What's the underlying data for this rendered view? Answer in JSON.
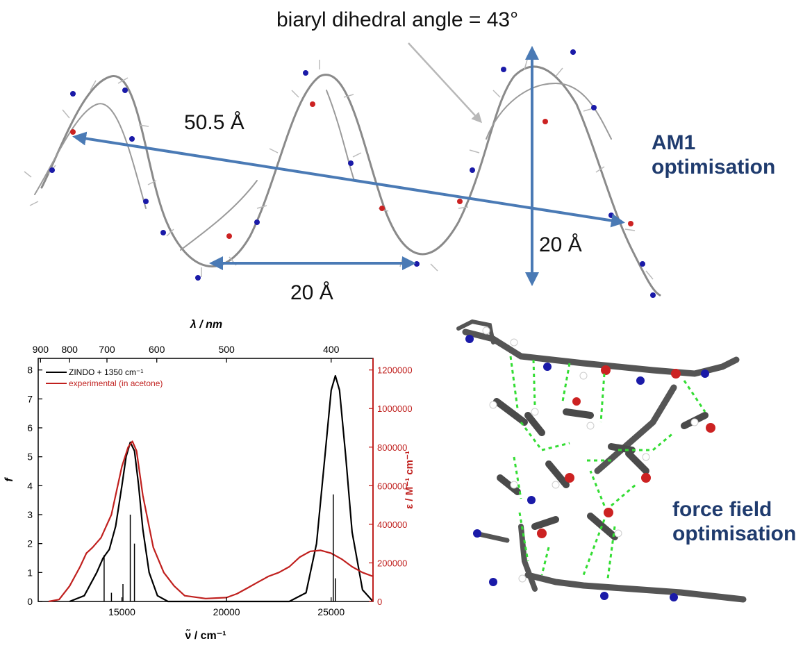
{
  "figure": {
    "top_panel": {
      "dihedral_label": "biaryl dihedral angle = 43°",
      "length_label": "50.5 Å",
      "pitch_label": "20 Å",
      "height_label": "20 Å",
      "method_label_line1": "AM1",
      "method_label_line2": "optimisation"
    },
    "bottom_right_panel": {
      "method_label_line1": "force field",
      "method_label_line2": "optimisation"
    }
  },
  "colors": {
    "arrow_blue": "#4a7ab5",
    "label_blue": "#1f3b6e",
    "experimental_red": "#c0201e",
    "hbond_green": "#33dd33",
    "nitrogen_blue": "#1a1aa8",
    "oxygen_red": "#cc2222",
    "carbon_grey": "#777777"
  },
  "chart_data": {
    "type": "line",
    "top_axis": {
      "label": "λ / nm",
      "ticks": [
        "900",
        "800",
        "700",
        "600",
        "500",
        "400"
      ]
    },
    "xlabel": "ν̃ / cm⁻¹",
    "xlim": [
      11000,
      27000
    ],
    "xticks": [
      "15000",
      "20000",
      "25000"
    ],
    "ylabel_left": "f",
    "ylim_left": [
      0,
      8.4
    ],
    "yticks_left": [
      "0",
      "1",
      "2",
      "3",
      "4",
      "5",
      "6",
      "7",
      "8"
    ],
    "ylabel_right": "ε / M⁻¹ cm⁻¹",
    "ylim_right": [
      0,
      1260000
    ],
    "yticks_right": [
      "0",
      "200000",
      "400000",
      "600000",
      "800000",
      "1000000",
      "1200000"
    ],
    "legend": [
      "ZINDO + 1350 cm⁻¹",
      "experimental (in acetone)"
    ],
    "legend_position": "top-left",
    "series": [
      {
        "name": "ZINDO + 1350 cm⁻¹",
        "color": "#000000",
        "axis": "left",
        "x": [
          12500,
          13200,
          13800,
          14100,
          14400,
          14700,
          15000,
          15200,
          15400,
          15600,
          15800,
          16000,
          16300,
          16700,
          17200,
          20000,
          23000,
          23800,
          24300,
          24700,
          25000,
          25200,
          25400,
          25700,
          26000,
          26500,
          27000
        ],
        "y": [
          0,
          0.2,
          1.0,
          1.5,
          1.8,
          2.6,
          4.0,
          5.0,
          5.5,
          5.2,
          4.0,
          2.5,
          1.0,
          0.2,
          0,
          0,
          0,
          0.3,
          2.0,
          5.0,
          7.3,
          7.8,
          7.3,
          5.0,
          2.4,
          0.4,
          0
        ]
      },
      {
        "name": "experimental (in acetone)",
        "color": "#c0201e",
        "axis": "right",
        "x": [
          11500,
          12000,
          12500,
          13000,
          13300,
          13600,
          14000,
          14500,
          15000,
          15300,
          15500,
          15700,
          16000,
          16500,
          17000,
          17500,
          18000,
          19000,
          20000,
          20500,
          21000,
          21500,
          22000,
          22500,
          23000,
          23500,
          24000,
          24500,
          25000,
          25500,
          26000,
          26500,
          27000
        ],
        "y": [
          0,
          10000,
          80000,
          180000,
          250000,
          280000,
          330000,
          450000,
          700000,
          800000,
          830000,
          780000,
          550000,
          280000,
          150000,
          80000,
          30000,
          15000,
          20000,
          40000,
          70000,
          100000,
          130000,
          150000,
          180000,
          230000,
          260000,
          265000,
          250000,
          220000,
          180000,
          150000,
          130000
        ]
      }
    ],
    "oscillator_sticks": {
      "x": [
        14150,
        14500,
        15050,
        15400,
        15600,
        25100,
        25200
      ],
      "f": [
        1.6,
        0.3,
        0.6,
        3.0,
        2.0,
        3.7,
        0.8
      ]
    }
  }
}
